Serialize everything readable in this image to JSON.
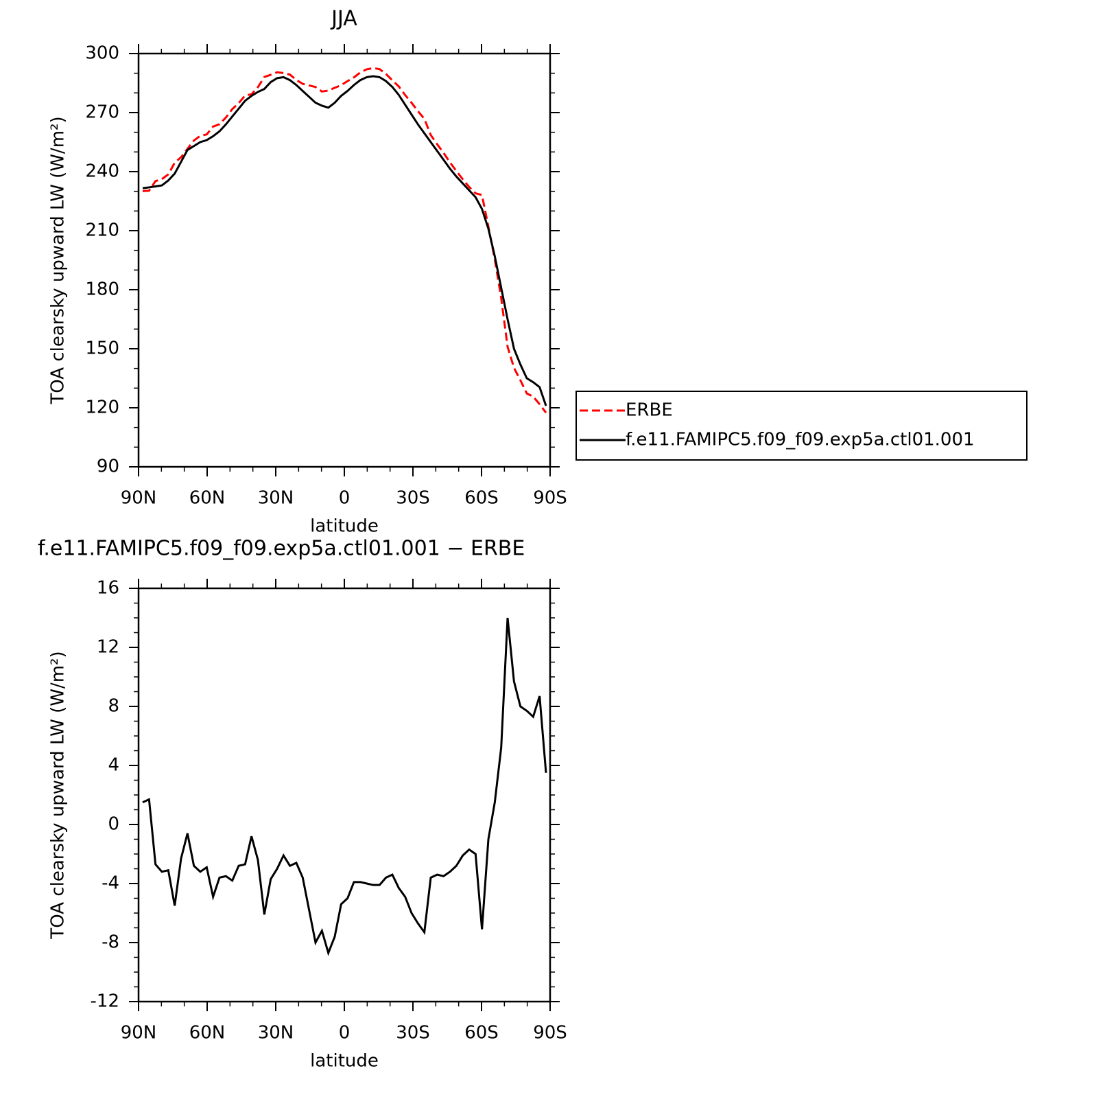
{
  "chart_data": [
    {
      "type": "line",
      "title": "JJA",
      "xlabel": "latitude",
      "ylabel": "TOA clearsky upward LW (W/m²)",
      "x": [
        88.2,
        85.4,
        82.6,
        79.8,
        77,
        74.2,
        71.4,
        68.6,
        65.8,
        63,
        60.2,
        57.4,
        54.6,
        51.8,
        49,
        46.2,
        43.4,
        40.6,
        37.8,
        35,
        32.2,
        29.4,
        26.6,
        23.8,
        21,
        18.2,
        15.4,
        12.6,
        9.8,
        7,
        4.2,
        1.4,
        -1.4,
        -4.2,
        -7,
        -9.8,
        -12.6,
        -15.4,
        -18.2,
        -21,
        -23.8,
        -26.6,
        -29.4,
        -32.2,
        -35,
        -37.8,
        -40.6,
        -43.4,
        -46.2,
        -49,
        -51.8,
        -54.6,
        -57.4,
        -60.2,
        -63,
        -65.8,
        -68.6,
        -71.4,
        -74.2,
        -77,
        -79.8,
        -82.6,
        -85.4,
        -88.2
      ],
      "series": [
        {
          "name": "ERBE",
          "color": "#ff0000",
          "dash": true,
          "values": [
            230.1,
            230.3,
            235.2,
            236.2,
            238.6,
            244.5,
            247.3,
            251.6,
            255.8,
            258.2,
            258.9,
            262.9,
            264.1,
            267.5,
            271.8,
            274.8,
            278.7,
            279.3,
            282.9,
            288.1,
            289.2,
            290.5,
            290.1,
            289.3,
            286.6,
            284.6,
            283.8,
            283,
            280.7,
            281.2,
            282.6,
            283.9,
            286,
            287.9,
            290.4,
            292,
            292.6,
            292.1,
            289.6,
            286.4,
            283.3,
            278.9,
            275,
            270.7,
            266.8,
            258.6,
            253.9,
            249.5,
            244.7,
            240.3,
            236.1,
            232.2,
            229,
            228.1,
            212,
            195.5,
            175.8,
            151,
            140.3,
            134,
            127.3,
            125.7,
            121.8,
            117.5
          ]
        },
        {
          "name": "f.e11.FAMIPC5.f09_f09.exp5a.ctl01.001",
          "color": "#000000",
          "dash": false,
          "values": [
            231.6,
            232,
            232.5,
            233,
            235.5,
            239,
            245,
            251,
            253,
            255,
            256,
            258,
            260.5,
            264,
            268,
            272,
            276,
            278.5,
            280.5,
            282,
            285.5,
            287.5,
            288,
            286.5,
            284,
            281,
            278,
            275,
            273.5,
            272.5,
            275,
            278.5,
            281,
            284,
            286.5,
            288,
            288.5,
            288,
            286,
            283,
            279,
            274,
            269,
            264,
            259.5,
            255,
            250.5,
            246,
            241.5,
            237.5,
            234,
            230.5,
            227,
            221,
            211,
            197,
            181,
            165,
            150,
            142,
            135,
            133,
            130.5,
            121
          ]
        }
      ],
      "xlim": [
        90,
        -90
      ],
      "xticks": [
        {
          "value": 90,
          "label": "90N"
        },
        {
          "value": 60,
          "label": "60N"
        },
        {
          "value": 30,
          "label": "30N"
        },
        0,
        {
          "value": -30,
          "label": "30S"
        },
        {
          "value": -60,
          "label": "60S"
        },
        {
          "value": -90,
          "label": "90S"
        }
      ],
      "xminorticks": [
        80,
        70,
        50,
        40,
        20,
        10,
        -10,
        -20,
        -40,
        -50,
        -70,
        -80
      ],
      "ylim": [
        90,
        300
      ],
      "yticks": [
        90,
        120,
        150,
        180,
        210,
        240,
        270,
        300
      ],
      "yminorticks": [
        100,
        110,
        130,
        140,
        160,
        170,
        190,
        200,
        220,
        230,
        250,
        260,
        280,
        290
      ],
      "legend": "right"
    },
    {
      "type": "line",
      "title": "f.e11.FAMIPC5.f09_f09.exp5a.ctl01.001 − ERBE",
      "xlabel": "latitude",
      "ylabel": "TOA clearsky upward LW (W/m²)",
      "x": [
        88.2,
        85.4,
        82.6,
        79.8,
        77,
        74.2,
        71.4,
        68.6,
        65.8,
        63,
        60.2,
        57.4,
        54.6,
        51.8,
        49,
        46.2,
        43.4,
        40.6,
        37.8,
        35,
        32.2,
        29.4,
        26.6,
        23.8,
        21,
        18.2,
        15.4,
        12.6,
        9.8,
        7,
        4.2,
        1.4,
        -1.4,
        -4.2,
        -7,
        -9.8,
        -12.6,
        -15.4,
        -18.2,
        -21,
        -23.8,
        -26.6,
        -29.4,
        -32.2,
        -35,
        -37.8,
        -40.6,
        -43.4,
        -46.2,
        -49,
        -51.8,
        -54.6,
        -57.4,
        -60.2,
        -63,
        -65.8,
        -68.6,
        -71.4,
        -74.2,
        -77,
        -79.8,
        -82.6,
        -85.4,
        -88.2
      ],
      "series": [
        {
          "color": "#000000",
          "dash": false,
          "values": [
            1.5,
            1.7,
            -2.7,
            -3.2,
            -3.1,
            -5.5,
            -2.3,
            -0.6,
            -2.8,
            -3.2,
            -2.9,
            -4.9,
            -3.6,
            -3.5,
            -3.8,
            -2.8,
            -2.7,
            -0.8,
            -2.4,
            -6.1,
            -3.7,
            -3,
            -2.1,
            -2.8,
            -2.6,
            -3.6,
            -5.8,
            -8,
            -7.2,
            -8.7,
            -7.6,
            -5.4,
            -5,
            -3.9,
            -3.9,
            -4,
            -4.1,
            -4.1,
            -3.6,
            -3.4,
            -4.3,
            -4.9,
            -6,
            -6.7,
            -7.3,
            -3.6,
            -3.4,
            -3.5,
            -3.2,
            -2.8,
            -2.1,
            -1.7,
            -2,
            -7.1,
            -1,
            1.5,
            5.2,
            14,
            9.7,
            8,
            7.7,
            7.3,
            8.7,
            3.5
          ]
        }
      ],
      "xlim": [
        90,
        -90
      ],
      "xticks": [
        {
          "value": 90,
          "label": "90N"
        },
        {
          "value": 60,
          "label": "60N"
        },
        {
          "value": 30,
          "label": "30N"
        },
        0,
        {
          "value": -30,
          "label": "30S"
        },
        {
          "value": -60,
          "label": "60S"
        },
        {
          "value": -90,
          "label": "90S"
        }
      ],
      "xminorticks": [
        80,
        70,
        50,
        40,
        20,
        10,
        -10,
        -20,
        -40,
        -50,
        -70,
        -80
      ],
      "ylim": [
        -12,
        16
      ],
      "yticks": [
        -12,
        -8,
        -4,
        0,
        4,
        8,
        12,
        16
      ],
      "yminorticks": [
        -11,
        -10,
        -9,
        -7,
        -6,
        -5,
        -3,
        -2,
        -1,
        1,
        2,
        3,
        5,
        6,
        7,
        9,
        10,
        11,
        13,
        14,
        15
      ]
    }
  ]
}
